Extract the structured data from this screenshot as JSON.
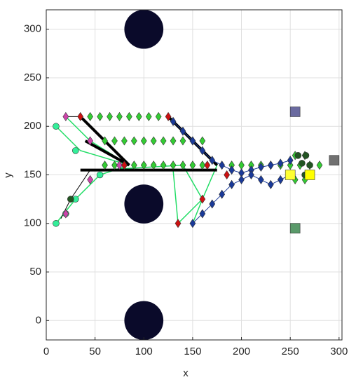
{
  "chart_data": {
    "type": "scatter",
    "xlabel": "x",
    "ylabel": "y",
    "xlim": [
      0,
      303
    ],
    "ylim": [
      -20,
      320
    ],
    "xticks": [
      0,
      50,
      100,
      150,
      200,
      250,
      300
    ],
    "yticks": [
      0,
      50,
      100,
      150,
      200,
      250,
      300
    ],
    "grid": true,
    "series": [
      {
        "mode": "lines",
        "color": "#22dd66",
        "line_width": 1.5,
        "x": [
          10,
          35,
          85,
          null,
          10,
          30,
          55,
          85,
          null,
          20,
          45,
          85,
          null,
          150,
          160,
          null,
          130,
          135,
          160,
          175,
          null,
          55,
          140,
          160
        ],
        "y": [
          200,
          175,
          160,
          null,
          100,
          125,
          150,
          160,
          null,
          210,
          185,
          160,
          null,
          100,
          125,
          null,
          155,
          100,
          125,
          160,
          null,
          155,
          160,
          125
        ]
      },
      {
        "mode": "lines",
        "color": "#000000",
        "line_width": 4,
        "x": [
          35,
          85,
          null,
          125,
          175,
          null,
          35,
          175,
          null,
          40,
          85
        ],
        "y": [
          210,
          160,
          null,
          210,
          160,
          null,
          155,
          155,
          null,
          185,
          160
        ]
      },
      {
        "mode": "lines",
        "color": "#000000",
        "line_width": 1,
        "x": [
          20,
          35,
          null,
          25,
          45,
          null,
          15,
          25
        ],
        "y": [
          210,
          210,
          null,
          125,
          155,
          null,
          105,
          125
        ]
      },
      {
        "mode": "markers",
        "marker": "circle",
        "color": "#33ee99",
        "x": [
          10,
          10,
          30,
          30,
          55,
          20
        ],
        "y": [
          200,
          100,
          175,
          125,
          150,
          110
        ]
      },
      {
        "mode": "markers",
        "marker": "diamond",
        "color": "#33cc33",
        "x": [
          45,
          55,
          65,
          75,
          85,
          95,
          105,
          115,
          60,
          70,
          80,
          90,
          100,
          110,
          120,
          130,
          140,
          150,
          160,
          60,
          70,
          80,
          90,
          100,
          110,
          120,
          130,
          140,
          150,
          160,
          190,
          200,
          210,
          220,
          230,
          240,
          250,
          260,
          270,
          280,
          255,
          255,
          265,
          265
        ],
        "y": [
          210,
          210,
          210,
          210,
          210,
          210,
          210,
          210,
          185,
          185,
          185,
          185,
          185,
          185,
          185,
          185,
          185,
          185,
          185,
          160,
          160,
          160,
          160,
          160,
          160,
          160,
          160,
          160,
          160,
          160,
          160,
          160,
          160,
          160,
          160,
          160,
          160,
          160,
          160,
          160,
          170,
          145,
          170,
          145
        ]
      },
      {
        "mode": "markers",
        "marker": "diamond",
        "color": "#cc44aa",
        "x": [
          20,
          45,
          75,
          45,
          20
        ],
        "y": [
          210,
          185,
          160,
          145,
          110
        ]
      },
      {
        "mode": "markers",
        "marker": "diamond",
        "color": "#cc1111",
        "x": [
          35,
          125,
          135,
          160,
          185,
          165,
          80
        ],
        "y": [
          210,
          210,
          100,
          125,
          150,
          160,
          160
        ]
      },
      {
        "mode": "lines+markers",
        "marker": "diamond",
        "color": "#1a3a99",
        "line_width": 1,
        "x": [
          130,
          140,
          150,
          160,
          170,
          180,
          190,
          200,
          210,
          220,
          230,
          240,
          250,
          null,
          150,
          160,
          170,
          180,
          190,
          200,
          210,
          220,
          230,
          240,
          250
        ],
        "y": [
          205,
          195,
          185,
          175,
          165,
          160,
          155,
          152,
          155,
          158,
          160,
          162,
          165,
          null,
          100,
          110,
          120,
          130,
          140,
          145,
          150,
          145,
          140,
          145,
          150
        ]
      },
      {
        "mode": "markers",
        "marker": "circle",
        "color": "#225522",
        "x": [
          258,
          266,
          262,
          270,
          250,
          25,
          265
        ],
        "y": [
          170,
          170,
          162,
          160,
          150,
          125,
          150
        ]
      },
      {
        "mode": "markers",
        "marker": "square",
        "colors": [
          "#6a6aa0",
          "#5a9a6a",
          "#707070",
          "#ffff00",
          "#ffff33"
        ],
        "x": [
          255,
          255,
          295,
          270,
          250
        ],
        "y": [
          215,
          95,
          165,
          150,
          150
        ]
      },
      {
        "mode": "markers",
        "marker": "disk",
        "color": "#0a0a2a",
        "x": [
          100,
          100,
          100
        ],
        "y": [
          300,
          120,
          0
        ]
      }
    ]
  }
}
